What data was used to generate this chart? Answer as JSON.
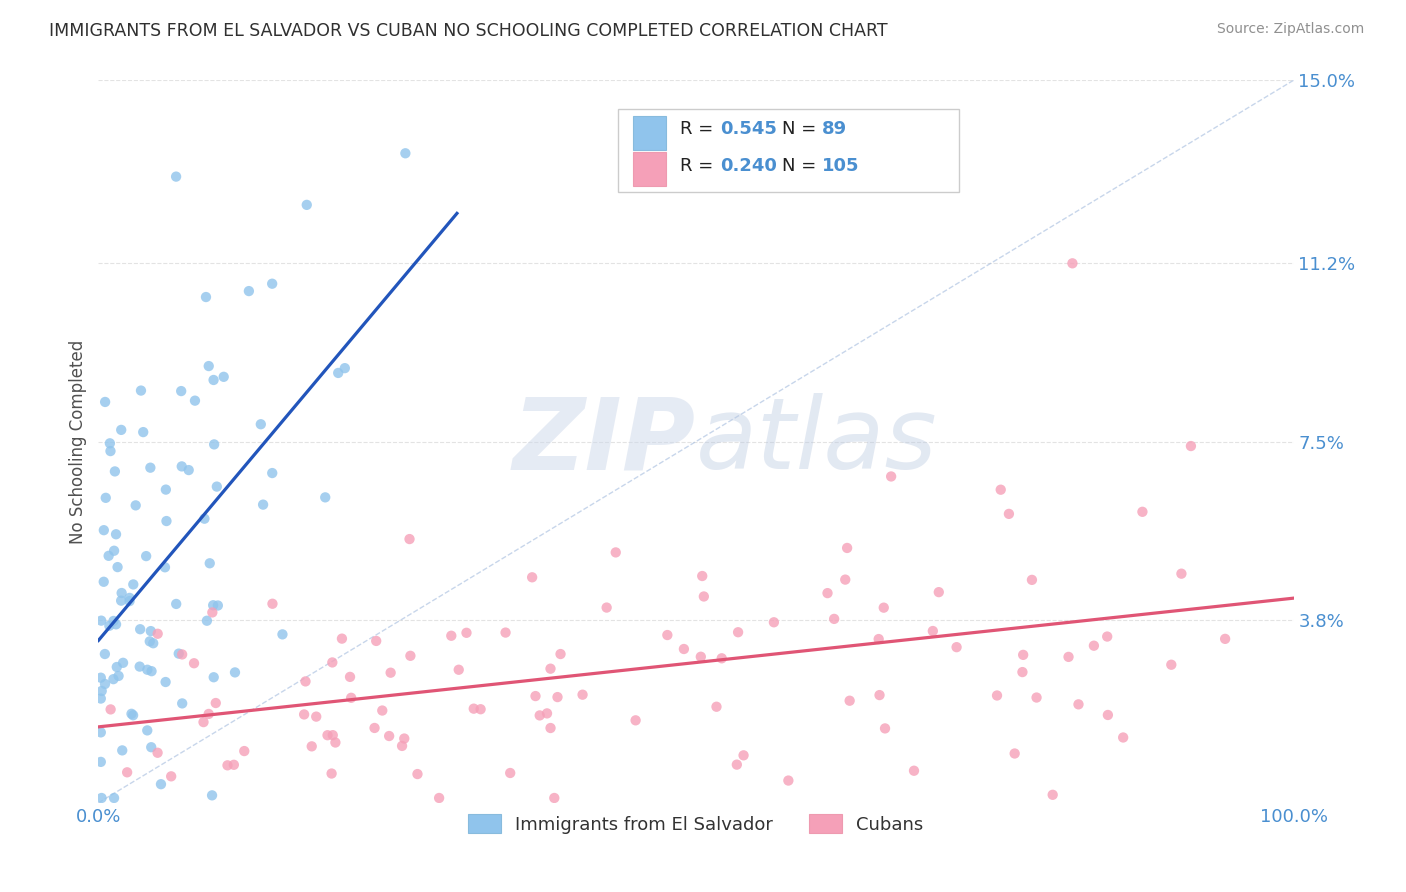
{
  "title": "IMMIGRANTS FROM EL SALVADOR VS CUBAN NO SCHOOLING COMPLETED CORRELATION CHART",
  "source": "Source: ZipAtlas.com",
  "ylabel": "No Schooling Completed",
  "color_salvador": "#90c4ec",
  "color_cuban": "#f5a0b8",
  "color_line_salvador": "#2255bb",
  "color_line_cuban": "#e05575",
  "color_diag": "#aac0e0",
  "color_tick": "#4a8fd0",
  "color_title": "#303030",
  "color_grid": "#cccccc",
  "color_text_black": "#222222",
  "color_text_blue": "#4a8fd0",
  "ylim_max": 0.15,
  "xlim_max": 1.0,
  "ytick_vals": [
    0.038,
    0.075,
    0.112,
    0.15
  ],
  "ytick_labels": [
    "3.8%",
    "7.5%",
    "11.2%",
    "15.0%"
  ],
  "R_sal": 0.545,
  "N_sal": 89,
  "R_cub": 0.24,
  "N_cub": 105,
  "legend_label_sal": "Immigrants from El Salvador",
  "legend_label_cub": "Cubans",
  "watermark": "ZIPatlas"
}
